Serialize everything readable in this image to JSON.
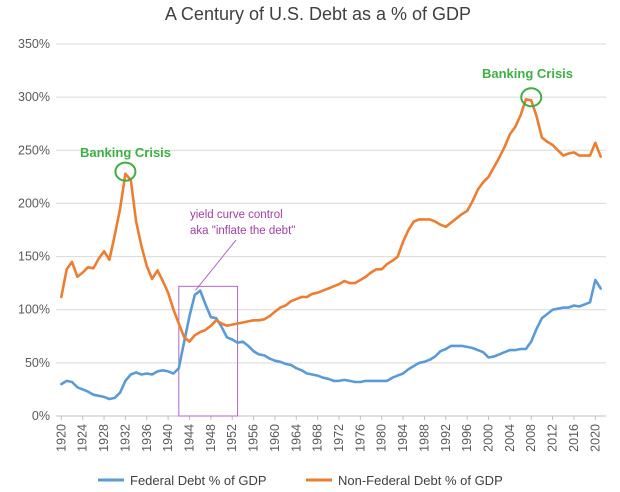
{
  "chart_data": {
    "type": "line",
    "title": "A Century of U.S. Debt as a % of GDP",
    "xlabel": "",
    "ylabel": "",
    "xlim": [
      1919,
      2022
    ],
    "ylim": [
      0,
      350
    ],
    "grid": true,
    "legend_position": "bottom",
    "y_ticks": [
      "0%",
      "50%",
      "100%",
      "150%",
      "200%",
      "250%",
      "300%",
      "350%"
    ],
    "y_tick_values": [
      0,
      50,
      100,
      150,
      200,
      250,
      300,
      350
    ],
    "x_ticks": [
      "1920",
      "1924",
      "1928",
      "1932",
      "1936",
      "1940",
      "1944",
      "1948",
      "1952",
      "1956",
      "1960",
      "1964",
      "1968",
      "1972",
      "1976",
      "1980",
      "1984",
      "1988",
      "1992",
      "1996",
      "2000",
      "2004",
      "2008",
      "2012",
      "2016",
      "2020"
    ],
    "series": [
      {
        "name": "Federal Debt % of GDP",
        "color": "#5B9BD5",
        "x": [
          1920,
          1921,
          1922,
          1923,
          1924,
          1925,
          1926,
          1927,
          1928,
          1929,
          1930,
          1931,
          1932,
          1933,
          1934,
          1935,
          1936,
          1937,
          1938,
          1939,
          1940,
          1941,
          1942,
          1943,
          1944,
          1945,
          1946,
          1947,
          1948,
          1949,
          1950,
          1951,
          1952,
          1953,
          1954,
          1955,
          1956,
          1957,
          1958,
          1959,
          1960,
          1961,
          1962,
          1963,
          1964,
          1965,
          1966,
          1967,
          1968,
          1969,
          1970,
          1971,
          1972,
          1973,
          1974,
          1975,
          1976,
          1977,
          1978,
          1979,
          1980,
          1981,
          1982,
          1983,
          1984,
          1985,
          1986,
          1987,
          1988,
          1989,
          1990,
          1991,
          1992,
          1993,
          1994,
          1995,
          1996,
          1997,
          1998,
          1999,
          2000,
          2001,
          2002,
          2003,
          2004,
          2005,
          2006,
          2007,
          2008,
          2009,
          2010,
          2011,
          2012,
          2013,
          2014,
          2015,
          2016,
          2017,
          2018,
          2019,
          2020,
          2021
        ],
        "y": [
          30,
          33,
          32,
          27,
          25,
          23,
          20,
          19,
          18,
          16,
          17,
          22,
          33,
          39,
          41,
          39,
          40,
          39,
          42,
          43,
          42,
          40,
          45,
          70,
          94,
          114,
          118,
          105,
          93,
          92,
          84,
          74,
          72,
          69,
          70,
          66,
          61,
          58,
          57,
          54,
          52,
          51,
          49,
          48,
          45,
          43,
          40,
          39,
          38,
          36,
          35,
          33,
          33,
          34,
          33,
          32,
          32,
          33,
          33,
          33,
          33,
          33,
          36,
          38,
          40,
          44,
          47,
          50,
          51,
          53,
          56,
          61,
          63,
          66,
          66,
          66,
          65,
          64,
          62,
          60,
          55,
          56,
          58,
          60,
          62,
          62,
          63,
          63,
          70,
          82,
          92,
          96,
          100,
          101,
          102,
          102,
          104,
          103,
          105,
          107,
          128,
          120
        ]
      },
      {
        "name": "Non-Federal Debt % of GDP",
        "color": "#ED7D31",
        "x": [
          1920,
          1921,
          1922,
          1923,
          1924,
          1925,
          1926,
          1927,
          1928,
          1929,
          1930,
          1931,
          1932,
          1933,
          1934,
          1935,
          1936,
          1937,
          1938,
          1939,
          1940,
          1941,
          1942,
          1943,
          1944,
          1945,
          1946,
          1947,
          1948,
          1949,
          1950,
          1951,
          1952,
          1953,
          1954,
          1955,
          1956,
          1957,
          1958,
          1959,
          1960,
          1961,
          1962,
          1963,
          1964,
          1965,
          1966,
          1967,
          1968,
          1969,
          1970,
          1971,
          1972,
          1973,
          1974,
          1975,
          1976,
          1977,
          1978,
          1979,
          1980,
          1981,
          1982,
          1983,
          1984,
          1985,
          1986,
          1987,
          1988,
          1989,
          1990,
          1991,
          1992,
          1993,
          1994,
          1995,
          1996,
          1997,
          1998,
          1999,
          2000,
          2001,
          2002,
          2003,
          2004,
          2005,
          2006,
          2007,
          2008,
          2009,
          2010,
          2011,
          2012,
          2013,
          2014,
          2015,
          2016,
          2017,
          2018,
          2019,
          2020,
          2021
        ],
        "y": [
          112,
          138,
          145,
          131,
          135,
          140,
          139,
          148,
          155,
          147,
          170,
          195,
          228,
          222,
          183,
          160,
          141,
          129,
          137,
          127,
          116,
          100,
          87,
          74,
          70,
          76,
          79,
          81,
          85,
          90,
          87,
          85,
          86,
          87,
          88,
          89,
          90,
          90,
          91,
          94,
          98,
          102,
          104,
          108,
          110,
          112,
          112,
          115,
          116,
          118,
          120,
          122,
          124,
          127,
          125,
          125,
          128,
          131,
          135,
          138,
          138,
          143,
          146,
          150,
          164,
          175,
          183,
          185,
          185,
          185,
          183,
          180,
          178,
          182,
          186,
          190,
          193,
          202,
          213,
          220,
          225,
          234,
          243,
          253,
          265,
          272,
          283,
          298,
          297,
          282,
          262,
          258,
          255,
          250,
          245,
          247,
          248,
          245,
          245,
          245,
          257,
          244
        ]
      }
    ],
    "annotations": [
      {
        "text": "Banking Crisis",
        "x": 1932,
        "y": 228,
        "color": "#3CB043"
      },
      {
        "text": "Banking Crisis",
        "x": 2008,
        "y": 298,
        "color": "#3CB043"
      },
      {
        "text": "yield curve control",
        "color": "#A040A0"
      },
      {
        "text": "aka \"inflate the debt\"",
        "color": "#A040A0"
      }
    ],
    "highlight_box": {
      "x_from": 1942,
      "x_to": 1953,
      "y_from": 0,
      "y_to": 122,
      "color": "#B266C8"
    }
  }
}
